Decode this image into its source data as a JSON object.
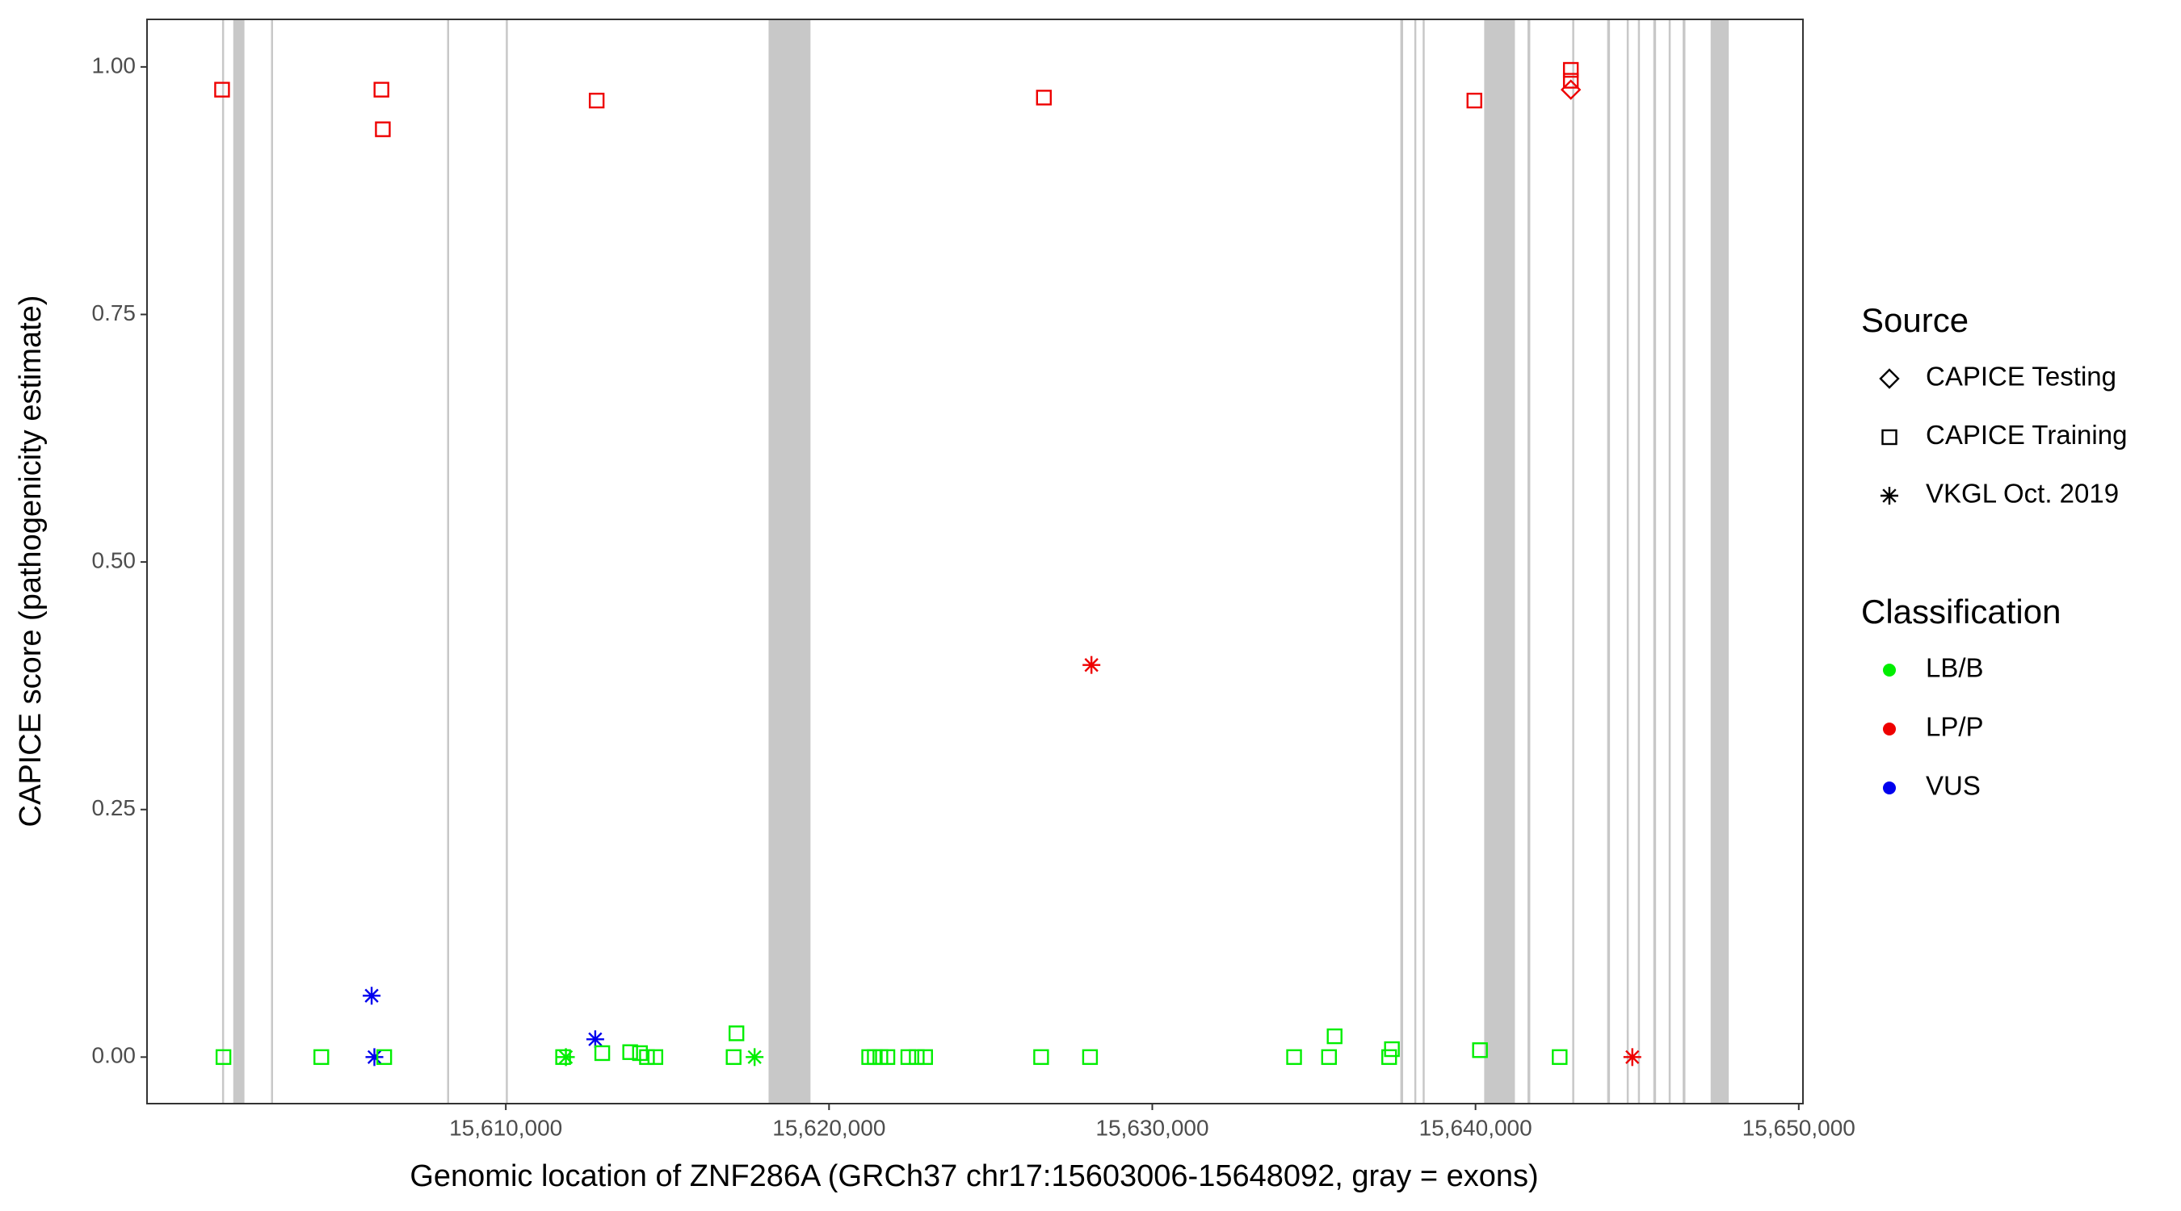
{
  "chart_data": {
    "type": "scatter",
    "x_label": "Genomic location of ZNF286A (GRCh37 chr17:15603006-15648092, gray = exons)",
    "y_label": "CAPICE score (pathogenicity estimate)",
    "xlim": [
      15598900,
      15650130
    ],
    "ylim": [
      -0.047,
      1.048
    ],
    "xticks": [
      {
        "value": 15610000,
        "label": "15,610,000"
      },
      {
        "value": 15620000,
        "label": "15,620,000"
      },
      {
        "value": 15630000,
        "label": "15,630,000"
      },
      {
        "value": 15640000,
        "label": "15,640,000"
      },
      {
        "value": 15650000,
        "label": "15,650,000"
      }
    ],
    "yticks": [
      {
        "value": 0,
        "label": "0.00"
      },
      {
        "value": 0.25,
        "label": "0.25"
      },
      {
        "value": 0.5,
        "label": "0.50"
      },
      {
        "value": 0.75,
        "label": "0.75"
      },
      {
        "value": 1,
        "label": "1.00"
      }
    ],
    "grid": false,
    "exon_color": "#c8c8c8",
    "exons": [
      [
        15601222,
        15601265
      ],
      [
        15601568,
        15601914
      ],
      [
        15602736,
        15602779
      ],
      [
        15608184,
        15608227
      ],
      [
        15610000,
        15610043
      ],
      [
        15618129,
        15619426
      ],
      [
        15637674,
        15637760
      ],
      [
        15638106,
        15638149
      ],
      [
        15638365,
        15638408
      ],
      [
        15640268,
        15641219
      ],
      [
        15641608,
        15641694
      ],
      [
        15642992,
        15643035
      ],
      [
        15644073,
        15644160
      ],
      [
        15644678,
        15644721
      ],
      [
        15645024,
        15645067
      ],
      [
        15645500,
        15645586
      ],
      [
        15645976,
        15646019
      ],
      [
        15646408,
        15646494
      ],
      [
        15647274,
        15647835
      ]
    ],
    "source": {
      "title": "Source",
      "labels": [
        "CAPICE Testing",
        "CAPICE Training",
        "VKGL Oct. 2019"
      ],
      "shapes": [
        "diamond",
        "square",
        "asterisk"
      ]
    },
    "classification": {
      "title": "Classification",
      "labels": [
        "LB/B",
        "LP/P",
        "VUS"
      ],
      "colors": [
        "#00ee00",
        "#ee0000",
        "#0000ee"
      ]
    },
    "points": {
      "x": [
        15601222,
        15606152,
        15606195,
        15612811,
        15626647,
        15639965,
        15642949,
        15642949,
        15642949,
        15628118,
        15644851,
        15605849,
        15605935,
        15612767,
        15601265,
        15604292,
        15606238,
        15611773,
        15612984,
        15613848,
        15614151,
        15614367,
        15614627,
        15617048,
        15617135,
        15621242,
        15621415,
        15621588,
        15621805,
        15622453,
        15622713,
        15622972,
        15626561,
        15628074,
        15634387,
        15635468,
        15635641,
        15637328,
        15637414,
        15640138,
        15642603,
        15611859,
        15617697
      ],
      "y": [
        0.977,
        0.977,
        0.937,
        0.966,
        0.969,
        0.966,
        0.997,
        0.986,
        0.977,
        0.396,
        0,
        0.062,
        0,
        0.018,
        0,
        0,
        0,
        0,
        0.004,
        0.005,
        0.004,
        0,
        0,
        0,
        0.024,
        0,
        0,
        0,
        0,
        0,
        0,
        0,
        0,
        0,
        0,
        0,
        0.021,
        0,
        0.008,
        0.007,
        0,
        0,
        0
      ],
      "source": [
        "CAPICE Training",
        "CAPICE Training",
        "CAPICE Training",
        "CAPICE Training",
        "CAPICE Training",
        "CAPICE Training",
        "CAPICE Training",
        "CAPICE Training",
        "CAPICE Testing",
        "VKGL Oct. 2019",
        "VKGL Oct. 2019",
        "VKGL Oct. 2019",
        "VKGL Oct. 2019",
        "VKGL Oct. 2019",
        "CAPICE Training",
        "CAPICE Training",
        "CAPICE Training",
        "CAPICE Training",
        "CAPICE Training",
        "CAPICE Training",
        "CAPICE Training",
        "CAPICE Training",
        "CAPICE Training",
        "CAPICE Training",
        "CAPICE Training",
        "CAPICE Training",
        "CAPICE Training",
        "CAPICE Training",
        "CAPICE Training",
        "CAPICE Training",
        "CAPICE Training",
        "CAPICE Training",
        "CAPICE Training",
        "CAPICE Training",
        "CAPICE Training",
        "CAPICE Training",
        "CAPICE Training",
        "CAPICE Training",
        "CAPICE Training",
        "CAPICE Training",
        "CAPICE Training",
        "VKGL Oct. 2019",
        "VKGL Oct. 2019"
      ],
      "classification": [
        "LP/P",
        "LP/P",
        "LP/P",
        "LP/P",
        "LP/P",
        "LP/P",
        "LP/P",
        "LP/P",
        "LP/P",
        "LP/P",
        "LP/P",
        "VUS",
        "VUS",
        "VUS",
        "LB/B",
        "LB/B",
        "LB/B",
        "LB/B",
        "LB/B",
        "LB/B",
        "LB/B",
        "LB/B",
        "LB/B",
        "LB/B",
        "LB/B",
        "LB/B",
        "LB/B",
        "LB/B",
        "LB/B",
        "LB/B",
        "LB/B",
        "LB/B",
        "LB/B",
        "LB/B",
        "LB/B",
        "LB/B",
        "LB/B",
        "LB/B",
        "LB/B",
        "LB/B",
        "LB/B",
        "LB/B",
        "LB/B"
      ]
    }
  }
}
